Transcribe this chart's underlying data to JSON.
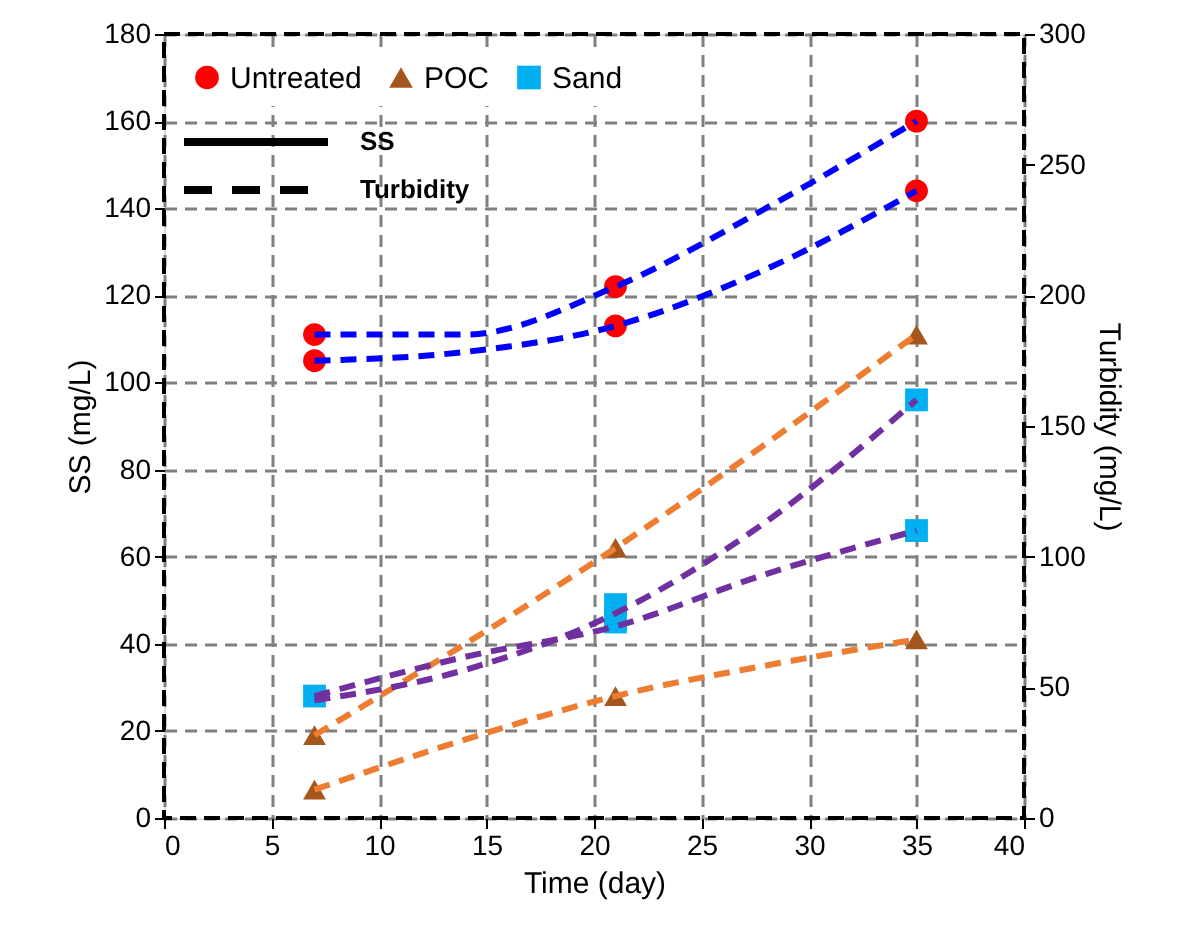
{
  "chart_data": {
    "type": "scatter",
    "xlabel": "Time (day)",
    "ylabel": "SS (mg/L)",
    "y2label": "Turbidity (mg/L)",
    "xlim": [
      0,
      40
    ],
    "xticks": [
      0,
      5,
      10,
      15,
      20,
      25,
      30,
      35,
      40
    ],
    "ylim": [
      0,
      180
    ],
    "yticks": [
      0,
      20,
      40,
      60,
      80,
      100,
      120,
      140,
      160,
      180
    ],
    "y2lim": [
      0,
      300
    ],
    "y2ticks": [
      0,
      50,
      100,
      150,
      200,
      250,
      300
    ],
    "grid": true,
    "legend": "top left",
    "annotations": [
      "SS",
      "Turbidity"
    ],
    "series": [
      {
        "name": "Untreated",
        "marker": "circle",
        "color": "#ff0000",
        "x": [
          7,
          7,
          21,
          21,
          35,
          35
        ],
        "values": [
          111,
          105,
          122,
          113,
          160,
          144
        ]
      },
      {
        "name": "POC",
        "marker": "triangle",
        "color": "#a5561c",
        "x": [
          7,
          7,
          21,
          21,
          35,
          35
        ],
        "values": [
          19,
          6.5,
          62,
          28,
          111,
          41
        ]
      },
      {
        "name": "Sand",
        "marker": "square",
        "color": "#00b0f0",
        "x": [
          7,
          21,
          21,
          35,
          35
        ],
        "values": [
          28,
          49,
          45,
          96,
          66
        ]
      },
      {
        "type": "line",
        "line_style": "dashed",
        "color": "#0000ff",
        "x": [
          7,
          14,
          21,
          28,
          35
        ],
        "values": [
          111,
          111,
          122,
          140,
          160
        ]
      },
      {
        "type": "line",
        "line_style": "dashed",
        "color": "#0000ff",
        "x": [
          7,
          14,
          21,
          28,
          35
        ],
        "values": [
          105,
          107,
          113,
          126,
          144
        ]
      },
      {
        "type": "line",
        "line_style": "dashed",
        "color": "#ed7d31",
        "x": [
          7,
          21,
          35
        ],
        "values": [
          19,
          62,
          111
        ]
      },
      {
        "type": "line",
        "line_style": "dashed",
        "color": "#ed7d31",
        "x": [
          7,
          14,
          21,
          28,
          35
        ],
        "values": [
          6.5,
          18,
          28,
          35,
          41
        ]
      },
      {
        "type": "line",
        "line_style": "dashed",
        "color": "#7030a0",
        "x": [
          7,
          14,
          21,
          28,
          35
        ],
        "values": [
          27,
          34,
          47,
          68,
          96
        ]
      },
      {
        "type": "line",
        "line_style": "dashed",
        "color": "#7030a0",
        "x": [
          7,
          14,
          21,
          28,
          35
        ],
        "values": [
          28,
          37,
          44,
          56,
          66
        ]
      }
    ]
  }
}
